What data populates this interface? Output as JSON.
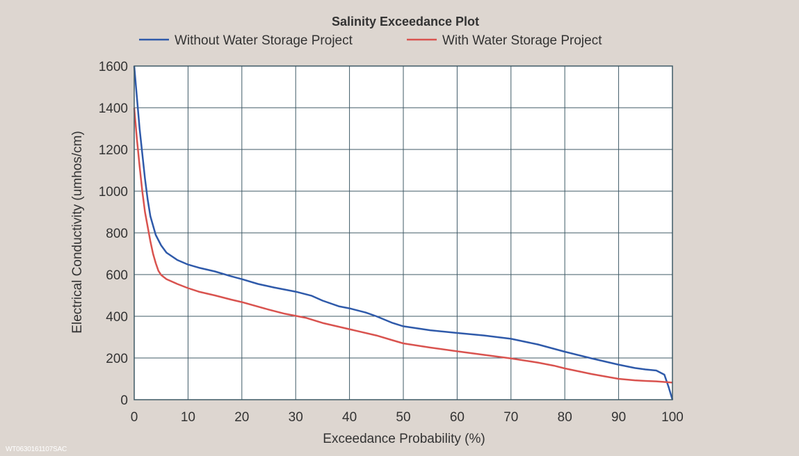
{
  "chart_data": {
    "type": "line",
    "title": "Salinity Exceedance Plot",
    "xlabel": "Exceedance Probability (%)",
    "ylabel": "Electrical Conductivity (umhos/cm)",
    "xlim": [
      0,
      100
    ],
    "ylim": [
      0,
      1600
    ],
    "xticks": [
      0,
      10,
      20,
      30,
      40,
      50,
      60,
      70,
      80,
      90,
      100
    ],
    "yticks": [
      0,
      200,
      400,
      600,
      800,
      1000,
      1200,
      1400,
      1600
    ],
    "grid": true,
    "legend_position": "top",
    "series": [
      {
        "name": "Without Water Storage Project",
        "color": "#2f5aaa",
        "points": [
          [
            0,
            1600
          ],
          [
            0.5,
            1450
          ],
          [
            1,
            1300
          ],
          [
            1.5,
            1180
          ],
          [
            2,
            1060
          ],
          [
            2.5,
            960
          ],
          [
            3,
            880
          ],
          [
            4,
            790
          ],
          [
            5,
            740
          ],
          [
            6,
            705
          ],
          [
            8,
            670
          ],
          [
            10,
            648
          ],
          [
            12,
            633
          ],
          [
            15,
            615
          ],
          [
            18,
            592
          ],
          [
            20,
            578
          ],
          [
            23,
            555
          ],
          [
            26,
            538
          ],
          [
            30,
            518
          ],
          [
            33,
            498
          ],
          [
            35,
            475
          ],
          [
            38,
            448
          ],
          [
            40,
            438
          ],
          [
            43,
            418
          ],
          [
            45,
            400
          ],
          [
            48,
            368
          ],
          [
            50,
            352
          ],
          [
            55,
            333
          ],
          [
            60,
            320
          ],
          [
            65,
            308
          ],
          [
            70,
            292
          ],
          [
            75,
            265
          ],
          [
            80,
            230
          ],
          [
            85,
            198
          ],
          [
            90,
            168
          ],
          [
            93,
            152
          ],
          [
            95,
            145
          ],
          [
            97,
            140
          ],
          [
            98.5,
            120
          ],
          [
            99.3,
            60
          ],
          [
            100,
            0
          ]
        ]
      },
      {
        "name": "With Water Storage Project",
        "color": "#d9534f",
        "points": [
          [
            0,
            1400
          ],
          [
            0.5,
            1250
          ],
          [
            1,
            1120
          ],
          [
            1.5,
            1000
          ],
          [
            2,
            900
          ],
          [
            2.5,
            830
          ],
          [
            3,
            760
          ],
          [
            3.5,
            700
          ],
          [
            4,
            655
          ],
          [
            4.5,
            618
          ],
          [
            5,
            598
          ],
          [
            6,
            578
          ],
          [
            8,
            555
          ],
          [
            10,
            535
          ],
          [
            12,
            518
          ],
          [
            15,
            500
          ],
          [
            18,
            480
          ],
          [
            20,
            468
          ],
          [
            25,
            432
          ],
          [
            28,
            412
          ],
          [
            32,
            392
          ],
          [
            35,
            368
          ],
          [
            40,
            338
          ],
          [
            45,
            308
          ],
          [
            48,
            285
          ],
          [
            50,
            270
          ],
          [
            55,
            250
          ],
          [
            60,
            232
          ],
          [
            65,
            215
          ],
          [
            70,
            198
          ],
          [
            75,
            178
          ],
          [
            78,
            163
          ],
          [
            80,
            150
          ],
          [
            85,
            123
          ],
          [
            90,
            100
          ],
          [
            93,
            93
          ],
          [
            95,
            90
          ],
          [
            97,
            88
          ],
          [
            100,
            82
          ]
        ]
      }
    ]
  },
  "watermark": "WT0630161107SAC"
}
